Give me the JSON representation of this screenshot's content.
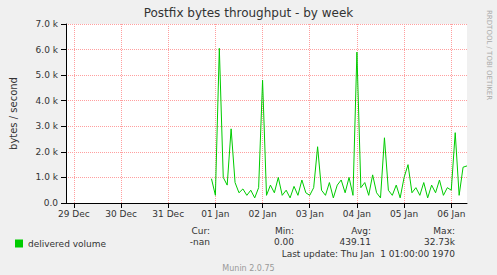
{
  "chart_data": {
    "type": "line",
    "title": "Postfix bytes throughput - by week",
    "y_label": "bytes / second",
    "categories": [
      null,
      null,
      "29 Dec",
      null,
      null,
      null,
      null,
      null,
      null,
      null,
      null,
      null,
      null,
      null,
      "30 Dec",
      null,
      null,
      null,
      null,
      null,
      null,
      null,
      null,
      null,
      null,
      null,
      "31 Dec",
      null,
      null,
      null,
      null,
      null,
      null,
      null,
      null,
      null,
      null,
      null,
      "01 Jan",
      null,
      null,
      null,
      null,
      null,
      null,
      null,
      null,
      null,
      null,
      null,
      "02 Jan",
      null,
      null,
      null,
      null,
      null,
      null,
      null,
      null,
      null,
      null,
      null,
      "03 Jan",
      null,
      null,
      null,
      null,
      null,
      null,
      null,
      null,
      null,
      null,
      null,
      "04 Jan",
      null,
      null,
      null,
      null,
      null,
      null,
      null,
      null,
      null,
      null,
      null,
      "05 Jan",
      null,
      null,
      null,
      null,
      null,
      null,
      null,
      null,
      null,
      null,
      null,
      "06 Jan",
      null,
      null,
      null,
      null
    ],
    "series": [
      {
        "name": "delivered volume",
        "color": "#00cc00",
        "values": [
          null,
          null,
          null,
          null,
          null,
          null,
          null,
          null,
          null,
          null,
          null,
          null,
          null,
          null,
          null,
          null,
          null,
          null,
          null,
          null,
          null,
          null,
          null,
          null,
          null,
          null,
          null,
          null,
          null,
          null,
          null,
          null,
          null,
          null,
          null,
          null,
          null,
          950,
          300,
          6050,
          1000,
          700,
          2900,
          800,
          400,
          550,
          300,
          500,
          200,
          600,
          4800,
          300,
          700,
          400,
          1000,
          300,
          500,
          200,
          650,
          300,
          900,
          400,
          300,
          600,
          2200,
          500,
          300,
          800,
          200,
          700,
          900,
          400,
          1000,
          300,
          5900,
          600,
          800,
          300,
          1100,
          400,
          200,
          2550,
          500,
          300,
          700,
          200,
          1000,
          1500,
          400,
          600,
          300,
          800,
          200,
          700,
          400,
          900,
          300,
          600,
          500,
          2750,
          300,
          1400,
          1450
        ]
      }
    ],
    "ylim": [
      0,
      7000
    ],
    "yticks": [
      {
        "value": 0,
        "label": "0.0"
      },
      {
        "value": 1000,
        "label": "1.0 k"
      },
      {
        "value": 2000,
        "label": "2.0 k"
      },
      {
        "value": 3000,
        "label": "3.0 k"
      },
      {
        "value": 4000,
        "label": "4.0 k"
      },
      {
        "value": 5000,
        "label": "5.0 k"
      },
      {
        "value": 6000,
        "label": "6.0 k"
      },
      {
        "value": 7000,
        "label": "7.0 k"
      }
    ],
    "grid": true,
    "legend": "bottom",
    "summary": {
      "labels": [
        "Cur:",
        "Min:",
        "Avg:",
        "Max:"
      ],
      "values": [
        "-nan",
        "0.00",
        "439.11",
        "32.73k"
      ]
    },
    "annotations": {
      "last_update": "Last update: Thu Jan  1 01:00:00 1970",
      "version": "Munin 2.0.75",
      "watermark": "RRDTOOL / TOBI OETIKER"
    }
  }
}
